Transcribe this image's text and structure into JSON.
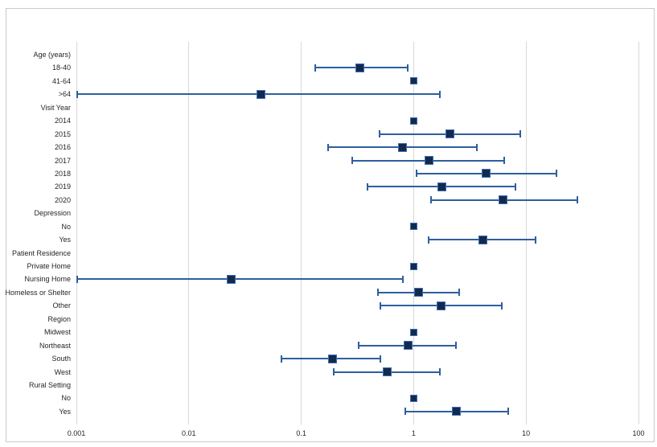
{
  "figure": {
    "kind": "forest-plot",
    "title": ""
  },
  "colors": {
    "ci_line_color": "#2e5f9e",
    "marker_fill": "#122a4e",
    "marker_border": "#3f6db5",
    "gridline_gray": "#d9d9d9",
    "border_gray": "#c9c9c9",
    "text_color": "#262626"
  },
  "chart_data": {
    "type": "scatter",
    "subtype": "forest-plot",
    "title": "",
    "xlabel": "",
    "ylabel": "",
    "x_scale": "log",
    "xlim": [
      0.001,
      100
    ],
    "x_ticks": [
      0.001,
      0.01,
      0.1,
      1,
      10,
      100
    ],
    "x_tick_labels": [
      "0.001",
      "0.01",
      "0.1",
      "1",
      "10",
      "100"
    ],
    "grid": "vertical",
    "legend": "none",
    "rows": [
      {
        "label": "Age (years)",
        "kind": "header"
      },
      {
        "label": "18-40",
        "kind": "estimate",
        "or": 0.33,
        "lo": 0.13,
        "hi": 0.9
      },
      {
        "label": "41-64",
        "kind": "reference",
        "or": 1.0
      },
      {
        "label": ">64",
        "kind": "estimate",
        "or": 0.044,
        "lo": 0.001,
        "hi": 1.74
      },
      {
        "label": "Visit Year",
        "kind": "header"
      },
      {
        "label": "2014",
        "kind": "reference",
        "or": 1.0
      },
      {
        "label": "2015",
        "kind": "estimate",
        "or": 2.1,
        "lo": 0.49,
        "hi": 9.0
      },
      {
        "label": "2016",
        "kind": "estimate",
        "or": 0.79,
        "lo": 0.17,
        "hi": 3.7
      },
      {
        "label": "2017",
        "kind": "estimate",
        "or": 1.36,
        "lo": 0.28,
        "hi": 6.5
      },
      {
        "label": "2018",
        "kind": "estimate",
        "or": 4.4,
        "lo": 1.04,
        "hi": 18.9
      },
      {
        "label": "2019",
        "kind": "estimate",
        "or": 1.77,
        "lo": 0.38,
        "hi": 8.2
      },
      {
        "label": "2020",
        "kind": "estimate",
        "or": 6.2,
        "lo": 1.4,
        "hi": 29.0
      },
      {
        "label": "Depression",
        "kind": "header"
      },
      {
        "label": "No",
        "kind": "reference",
        "or": 1.0
      },
      {
        "label": "Yes",
        "kind": "estimate",
        "or": 4.1,
        "lo": 1.33,
        "hi": 12.4
      },
      {
        "label": "Patient Residence",
        "kind": "header"
      },
      {
        "label": "Private Home",
        "kind": "reference",
        "or": 1.0
      },
      {
        "label": "Nursing Home",
        "kind": "estimate",
        "or": 0.024,
        "lo": 0.001,
        "hi": 0.82
      },
      {
        "label": "Homeless or Shelter",
        "kind": "estimate",
        "or": 1.1,
        "lo": 0.47,
        "hi": 2.6
      },
      {
        "label": "Other",
        "kind": "estimate",
        "or": 1.75,
        "lo": 0.5,
        "hi": 6.2
      },
      {
        "label": "Region",
        "kind": "header"
      },
      {
        "label": "Midwest",
        "kind": "reference",
        "or": 1.0
      },
      {
        "label": "Northeast",
        "kind": "estimate",
        "or": 0.89,
        "lo": 0.32,
        "hi": 2.4
      },
      {
        "label": "South",
        "kind": "estimate",
        "or": 0.19,
        "lo": 0.066,
        "hi": 0.51
      },
      {
        "label": "West",
        "kind": "estimate",
        "or": 0.58,
        "lo": 0.19,
        "hi": 1.74
      },
      {
        "label": "Rural Setting",
        "kind": "header"
      },
      {
        "label": "No",
        "kind": "reference",
        "or": 1.0
      },
      {
        "label": "Yes",
        "kind": "estimate",
        "or": 2.4,
        "lo": 0.83,
        "hi": 7.0
      }
    ]
  }
}
